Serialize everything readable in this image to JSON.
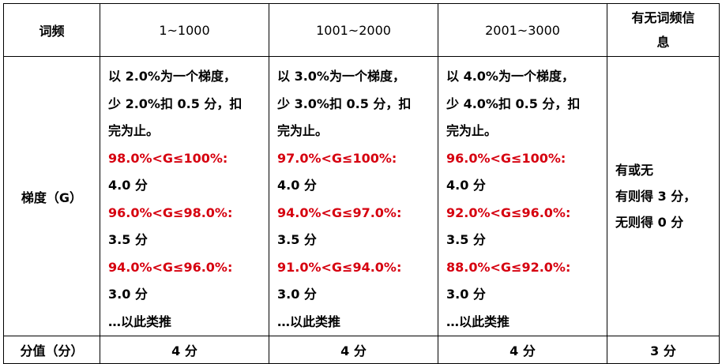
{
  "header": {
    "label": "词频",
    "ranges": [
      "1~1000",
      "1001~2000",
      "2001~3000"
    ],
    "info_line1": "有无词频信",
    "info_line2": "息"
  },
  "gradient_row": {
    "label": "梯度（G）",
    "columns": [
      {
        "rule_line1": "以 2.0%为一个梯度，",
        "rule_line2": "少 2.0%扣 0.5 分，扣",
        "rule_line3": "完为止。",
        "t1_range": "98.0%<G≤100%:",
        "t1_score": "4.0 分",
        "t2_range": "96.0%<G≤98.0%:",
        "t2_score": "3.5 分",
        "t3_range": "94.0%<G≤96.0%:",
        "t3_score": "3.0 分",
        "etc": "…以此类推"
      },
      {
        "rule_line1": "以 3.0%为一个梯度，",
        "rule_line2": "少 3.0%扣 0.5 分，扣",
        "rule_line3": "完为止。",
        "t1_range": "97.0%<G≤100%:",
        "t1_score": "4.0 分",
        "t2_range": "94.0%<G≤97.0%:",
        "t2_score": "3.5 分",
        "t3_range": "91.0%<G≤94.0%:",
        "t3_score": "3.0 分",
        "etc": "…以此类推"
      },
      {
        "rule_line1": "以 4.0%为一个梯度，",
        "rule_line2": "少 4.0%扣 0.5 分，扣",
        "rule_line3": "完为止。",
        "t1_range": "96.0%<G≤100%:",
        "t1_score": "4.0 分",
        "t2_range": "92.0%<G≤96.0%:",
        "t2_score": "3.5 分",
        "t3_range": "88.0%<G≤92.0%:",
        "t3_score": "3.0 分",
        "etc": "…以此类推"
      }
    ],
    "info_line1": "有或无",
    "info_line2": "有则得 3 分，",
    "info_line3": "无则得 0 分"
  },
  "score_row": {
    "label": "分值（分）",
    "values": [
      "4 分",
      "4 分",
      "4 分",
      "3 分"
    ]
  },
  "colors": {
    "tier_text": "#d6000f",
    "border": "#000000"
  }
}
